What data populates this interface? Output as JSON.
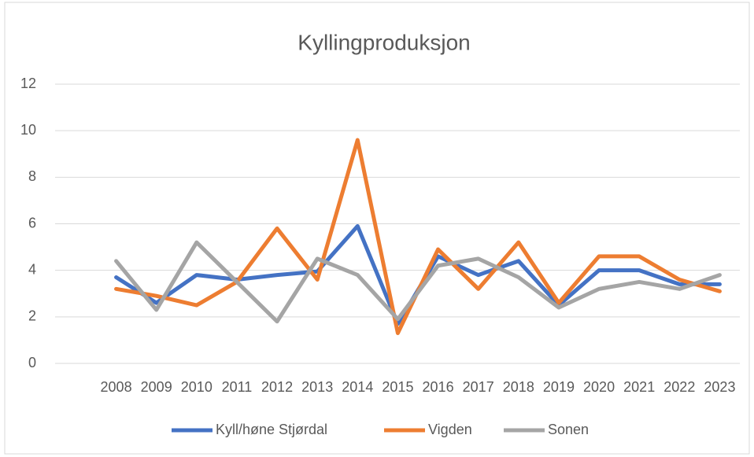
{
  "chart_data": {
    "type": "line",
    "title": "Kyllingproduksjon",
    "categories": [
      "2008",
      "2009",
      "2010",
      "2011",
      "2012",
      "2013",
      "2014",
      "2015",
      "2016",
      "2017",
      "2018",
      "2019",
      "2020",
      "2021",
      "2022",
      "2023"
    ],
    "series": [
      {
        "name": "Kyll/høne Stjørdal",
        "color": "#4472c4",
        "values": [
          3.7,
          2.6,
          3.8,
          3.6,
          3.8,
          3.95,
          5.9,
          1.7,
          4.6,
          3.8,
          4.4,
          2.5,
          4.0,
          4.0,
          3.4,
          3.4
        ]
      },
      {
        "name": "Vigden",
        "color": "#ed7d31",
        "values": [
          3.2,
          2.9,
          2.5,
          3.5,
          5.8,
          3.6,
          9.6,
          1.3,
          4.9,
          3.2,
          5.2,
          2.6,
          4.6,
          4.6,
          3.6,
          3.1
        ]
      },
      {
        "name": "Sonen",
        "color": "#a5a5a5",
        "values": [
          4.4,
          2.3,
          5.2,
          3.5,
          1.8,
          4.5,
          3.8,
          1.9,
          4.2,
          4.5,
          3.7,
          2.4,
          3.2,
          3.5,
          3.2,
          3.8
        ]
      }
    ],
    "ylim": [
      0,
      12
    ],
    "yticks": [
      0,
      2,
      4,
      6,
      8,
      10,
      12
    ],
    "grid": true,
    "legend": "bottom"
  }
}
